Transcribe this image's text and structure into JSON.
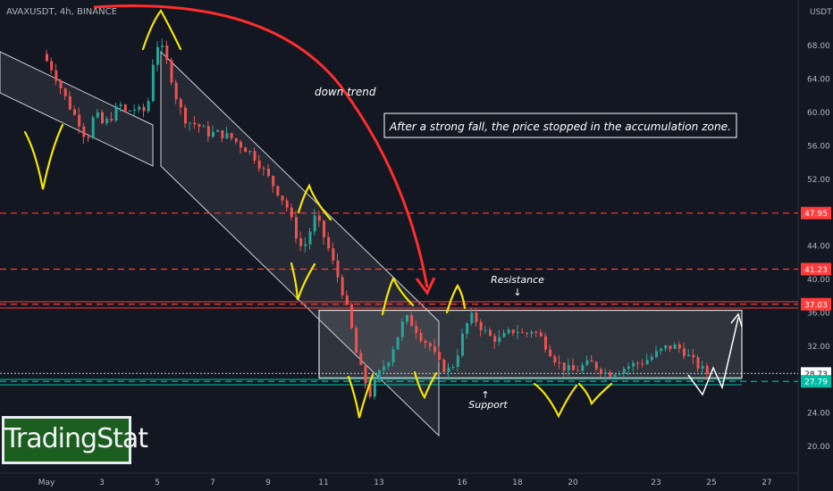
{
  "header": {
    "symbol_line": "AVAXUSDT, 4h, BINANCE",
    "currency": "USDT"
  },
  "brand": {
    "logo_text": "TradingStat"
  },
  "colors": {
    "background": "#131722",
    "up": "#26a69a",
    "down": "#ef5350",
    "resistance": "#ff3b3b",
    "support": "#00bfa5",
    "annotation_yellow": "#f5e600",
    "arrow": "#ff2d2d"
  },
  "chart_data": {
    "type": "candlestick",
    "title": "AVAXUSDT, 4h, BINANCE",
    "xlabel": "",
    "ylabel": "USDT",
    "x_ticks": [
      "May",
      "3",
      "5",
      "7",
      "9",
      "11",
      "13",
      "16",
      "18",
      "20",
      "23",
      "25",
      "27"
    ],
    "y_ticks": [
      20,
      24,
      28,
      32,
      36,
      40,
      44,
      48,
      52,
      56,
      60,
      64,
      68
    ],
    "ylim": [
      18.2,
      72.6
    ],
    "grid": false,
    "levels": [
      {
        "label": "47.95",
        "value": 47.95,
        "style": "dashed",
        "color": "#ff3b3b"
      },
      {
        "label": "41.23",
        "value": 41.23,
        "style": "dashed",
        "color": "#ff3b3b"
      },
      {
        "label": "37.03",
        "value": 37.03,
        "style": "dashed",
        "color": "#ff3b3b"
      },
      {
        "label": "28.73",
        "value": 28.73,
        "style": "dotted",
        "color": "#ffffff"
      },
      {
        "label": "27.79",
        "value": 27.79,
        "style": "dashed",
        "color": "#00bfa5"
      }
    ],
    "zones": [
      {
        "name": "accumulation",
        "from": 28.2,
        "to": 36.3
      }
    ],
    "price_path": [
      [
        0.0,
        67.0
      ],
      [
        0.4,
        65.0
      ],
      [
        0.8,
        62.0
      ],
      [
        1.1,
        60.0
      ],
      [
        1.4,
        58.5
      ],
      [
        1.6,
        56.5
      ],
      [
        1.9,
        60.0
      ],
      [
        2.2,
        58.5
      ],
      [
        2.5,
        59.5
      ],
      [
        2.8,
        61.0
      ],
      [
        3.0,
        60.0
      ],
      [
        3.3,
        60.5
      ],
      [
        3.6,
        60.0
      ],
      [
        3.8,
        60.5
      ],
      [
        4.0,
        66.0
      ],
      [
        4.2,
        68.5
      ],
      [
        4.4,
        67.0
      ],
      [
        4.6,
        65.0
      ],
      [
        4.9,
        61.0
      ],
      [
        5.2,
        59.0
      ],
      [
        5.6,
        58.5
      ],
      [
        6.0,
        57.5
      ],
      [
        6.4,
        57.5
      ],
      [
        6.8,
        57.0
      ],
      [
        7.2,
        56.0
      ],
      [
        7.6,
        55.0
      ],
      [
        8.0,
        53.0
      ],
      [
        8.4,
        51.0
      ],
      [
        8.8,
        49.0
      ],
      [
        9.0,
        47.0
      ],
      [
        9.2,
        45.0
      ],
      [
        9.4,
        43.5
      ],
      [
        9.6,
        45.0
      ],
      [
        9.8,
        47.5
      ],
      [
        10.0,
        46.5
      ],
      [
        10.3,
        44.0
      ],
      [
        10.6,
        41.0
      ],
      [
        10.8,
        39.0
      ],
      [
        11.0,
        36.5
      ],
      [
        11.2,
        33.5
      ],
      [
        11.4,
        30.0
      ],
      [
        11.6,
        28.5
      ],
      [
        11.8,
        26.0
      ],
      [
        12.0,
        27.5
      ],
      [
        12.2,
        29.0
      ],
      [
        12.5,
        30.5
      ],
      [
        12.8,
        33.0
      ],
      [
        13.1,
        35.5
      ],
      [
        13.4,
        34.5
      ],
      [
        13.7,
        33.0
      ],
      [
        14.0,
        32.0
      ],
      [
        14.3,
        30.0
      ],
      [
        14.6,
        29.0
      ],
      [
        14.9,
        30.0
      ],
      [
        15.1,
        32.5
      ],
      [
        15.3,
        34.5
      ],
      [
        15.5,
        35.5
      ],
      [
        15.7,
        35.0
      ],
      [
        15.9,
        34.0
      ],
      [
        16.2,
        33.0
      ],
      [
        16.5,
        32.8
      ],
      [
        16.8,
        33.5
      ],
      [
        17.1,
        34.0
      ],
      [
        17.4,
        33.3
      ],
      [
        17.7,
        34.0
      ],
      [
        18.0,
        33.0
      ],
      [
        18.3,
        31.5
      ],
      [
        18.6,
        30.0
      ],
      [
        18.9,
        29.3
      ],
      [
        19.2,
        29.0
      ],
      [
        19.5,
        29.6
      ],
      [
        19.8,
        30.0
      ],
      [
        20.1,
        29.3
      ],
      [
        20.4,
        28.7
      ],
      [
        20.7,
        29.0
      ],
      [
        21.0,
        29.4
      ],
      [
        21.3,
        29.8
      ],
      [
        21.6,
        30.0
      ],
      [
        21.9,
        30.5
      ],
      [
        22.2,
        31.2
      ],
      [
        22.5,
        31.8
      ],
      [
        22.8,
        32.0
      ],
      [
        23.1,
        31.6
      ],
      [
        23.4,
        30.5
      ],
      [
        23.7,
        29.5
      ],
      [
        24.0,
        28.8
      ]
    ]
  },
  "annotations": {
    "down_trend": "down trend",
    "box_note": "After a strong fall, the price stopped in the accumulation zone.",
    "resistance": "Resistance",
    "resistance_arrow": "↓",
    "support": "Support",
    "support_arrow": "↑"
  }
}
